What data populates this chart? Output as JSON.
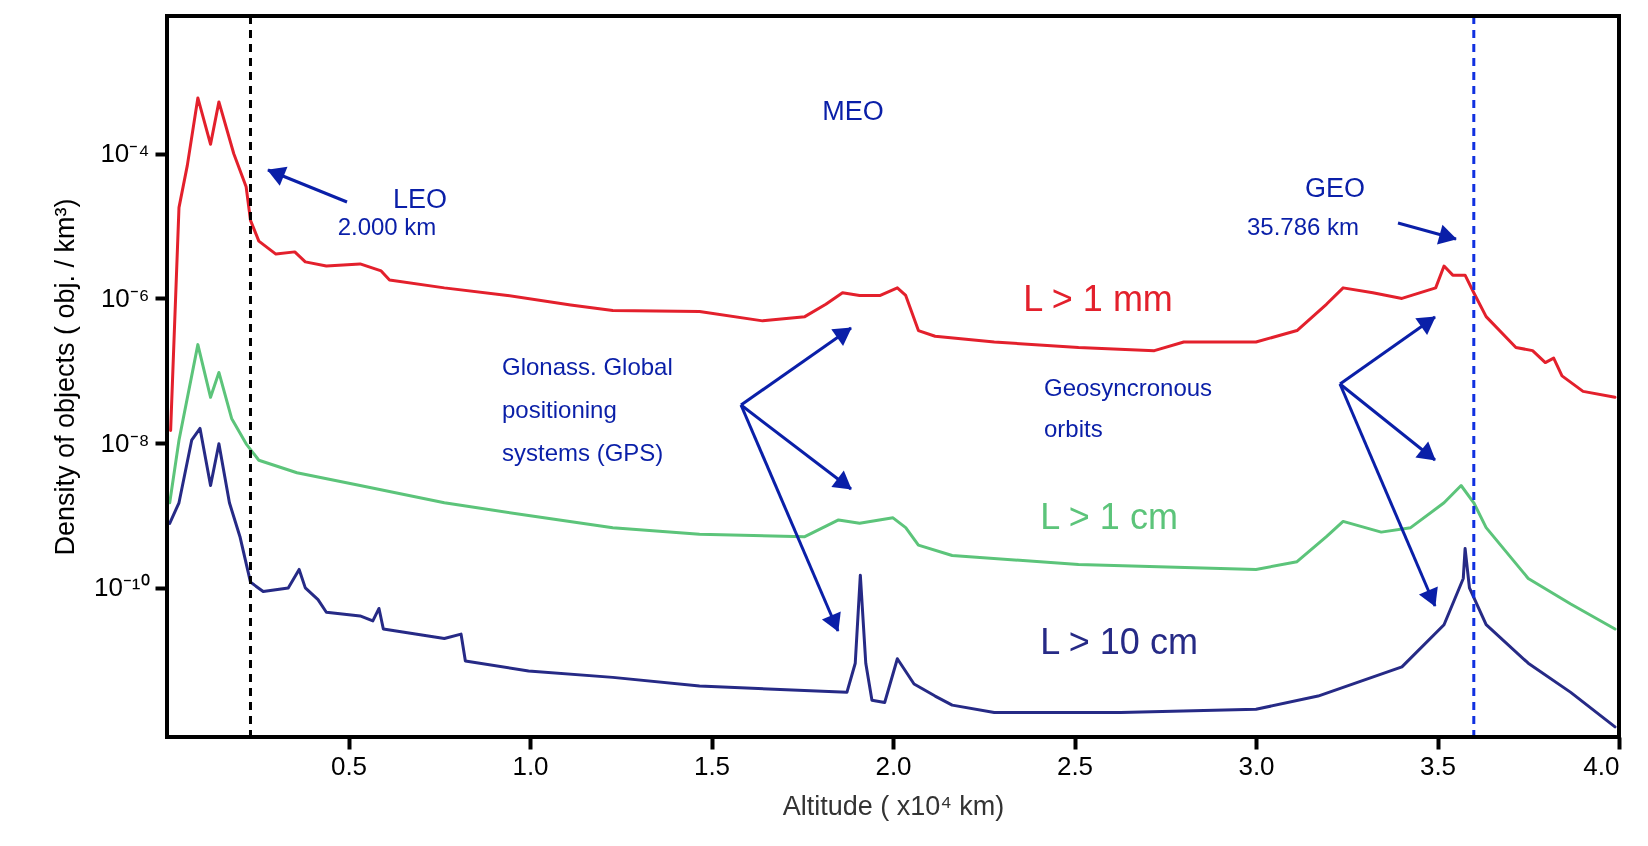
{
  "chart_data": {
    "type": "line",
    "xlabel": "Altitude ( x10⁴ km)",
    "ylabel": "Density of objects ( obj. / km³)",
    "log": "y",
    "xlim": [
      0,
      4
    ],
    "xticks": [
      0.5,
      {
        "value": 1,
        "label": "1.0"
      },
      1.5,
      {
        "value": 2,
        "label": "2.0"
      },
      2.5,
      {
        "value": 3,
        "label": "3.0"
      },
      3.5,
      {
        "value": 4,
        "label": "4.0"
      }
    ],
    "ylim": [
      8.7e-13,
      0.008
    ],
    "yticks": [
      {
        "value": 0.0001,
        "label": "10⁻⁴"
      },
      {
        "value": 1e-06,
        "label": "10⁻⁶"
      },
      {
        "value": 1e-08,
        "label": "10⁻⁸"
      },
      {
        "value": 1e-10,
        "label": "10⁻¹⁰"
      }
    ],
    "grid": false,
    "line_style": "solid",
    "marker": "none",
    "series": [
      {
        "name": "L > 1 mm",
        "color": "#e3202c",
        "x": [
          0.01,
          0.033,
          0.056,
          0.085,
          0.12,
          0.143,
          0.184,
          0.218,
          0.23,
          0.253,
          0.3,
          0.352,
          0.381,
          0.439,
          0.532,
          0.59,
          0.613,
          0.764,
          0.938,
          1.112,
          1.228,
          1.467,
          1.641,
          1.757,
          1.815,
          1.861,
          1.908,
          1.965,
          2.012,
          2.035,
          2.07,
          2.116,
          2.279,
          2.511,
          2.72,
          2.801,
          3.0,
          3.113,
          3.194,
          3.24,
          3.322,
          3.402,
          3.495,
          3.518,
          3.542,
          3.576,
          3.6,
          3.634,
          3.716,
          3.762,
          3.797,
          3.82,
          3.843,
          3.901,
          3.989
        ],
        "values": [
          1.5e-08,
          1.8e-05,
          6.9e-05,
          0.00059,
          0.000135,
          0.00052,
          0.0001,
          3.5e-05,
          1.2e-05,
          6.2e-06,
          4.1e-06,
          4.4e-06,
          3.2e-06,
          2.8e-06,
          3e-06,
          2.4e-06,
          1.8e-06,
          1.4e-06,
          1.1e-06,
          8.1e-07,
          6.8e-07,
          6.6e-07,
          4.9e-07,
          5.6e-07,
          8.3e-07,
          1.2e-06,
          1.1e-06,
          1.1e-06,
          1.4e-06,
          1.1e-06,
          3.6e-07,
          3e-07,
          2.5e-07,
          2.1e-07,
          1.9e-07,
          2.5e-07,
          2.5e-07,
          3.6e-07,
          8.3e-07,
          1.4e-06,
          1.2e-06,
          1e-06,
          1.4e-06,
          2.8e-06,
          2.1e-06,
          2.1e-06,
          1.2e-06,
          5.6e-07,
          2.1e-07,
          1.9e-07,
          1.3e-07,
          1.5e-07,
          8.5e-08,
          5.2e-08,
          4.3e-08
        ]
      },
      {
        "name": "L > 1 cm",
        "color": "#5cc47a",
        "x": [
          0.0075,
          0.033,
          0.085,
          0.12,
          0.143,
          0.178,
          0.218,
          0.253,
          0.358,
          0.532,
          0.764,
          0.996,
          1.228,
          1.467,
          1.757,
          1.85,
          1.908,
          2.0,
          2.035,
          2.07,
          2.163,
          2.511,
          3.0,
          3.113,
          3.194,
          3.24,
          3.345,
          3.426,
          3.518,
          3.565,
          3.6,
          3.634,
          3.75,
          3.867,
          3.989
        ],
        "values": [
          1.5e-09,
          1.1e-08,
          2.3e-07,
          4.3e-08,
          9.5e-08,
          2.2e-08,
          9.8e-09,
          5.8e-09,
          3.9e-09,
          2.6e-09,
          1.5e-09,
          1e-09,
          6.8e-10,
          5.5e-10,
          5.1e-10,
          8.7e-10,
          7.8e-10,
          9.3e-10,
          6.8e-10,
          3.9e-10,
          2.8e-10,
          2.1e-10,
          1.8e-10,
          2.3e-10,
          5.1e-10,
          8.3e-10,
          5.9e-10,
          6.8e-10,
          1.5e-09,
          2.6e-09,
          1.5e-09,
          6.8e-10,
          1.35e-10,
          6e-11,
          2.7e-11
        ]
      },
      {
        "name": "L > 10 cm",
        "color": "#262a86",
        "x": [
          0.0075,
          0.033,
          0.068,
          0.091,
          0.12,
          0.143,
          0.172,
          0.201,
          0.23,
          0.265,
          0.334,
          0.364,
          0.381,
          0.416,
          0.439,
          0.532,
          0.567,
          0.584,
          0.596,
          0.764,
          0.81,
          0.822,
          0.996,
          1.228,
          1.467,
          1.873,
          1.896,
          1.91,
          1.925,
          1.942,
          1.977,
          2.012,
          2.058,
          2.116,
          2.163,
          2.279,
          2.627,
          3.0,
          3.171,
          3.402,
          3.518,
          3.571,
          3.576,
          3.588,
          3.634,
          3.75,
          3.867,
          3.989
        ],
        "values": [
          7.8e-10,
          1.5e-09,
          1.1e-08,
          1.6e-08,
          2.6e-09,
          9.8e-09,
          1.5e-09,
          5.1e-10,
          1.2e-10,
          8.9e-11,
          1e-10,
          1.8e-10,
          1e-10,
          6.9e-11,
          4.6e-11,
          4.1e-11,
          3.5e-11,
          5.2e-11,
          2.7e-11,
          2e-11,
          2.3e-11,
          9.8e-12,
          7.1e-12,
          5.8e-12,
          4.4e-12,
          3.6e-12,
          9.1e-12,
          1.5e-10,
          9.1e-12,
          2.8e-12,
          2.6e-12,
          1.05e-11,
          4.7e-12,
          3.2e-12,
          2.4e-12,
          1.9e-12,
          1.9e-12,
          2.1e-12,
          3.2e-12,
          8.1e-12,
          3.1e-11,
          1.35e-10,
          3.5e-10,
          1e-10,
          3.1e-11,
          9.1e-12,
          3.6e-12,
          1.2e-12
        ]
      }
    ],
    "ref_lines": [
      {
        "axis": "x",
        "value": 0.23,
        "color": "#000000",
        "line_style": "dashed"
      },
      {
        "axis": "x",
        "value": 3.6,
        "color": "#1030e0",
        "line_style": "dashed"
      }
    ],
    "annotations": [
      "MEO",
      "LEO",
      "2.000 km",
      "GEO",
      "35.786 km",
      "Glonass. Global\npositioning\nsystems (GPS)",
      "Geosyncronous\norbits"
    ]
  }
}
